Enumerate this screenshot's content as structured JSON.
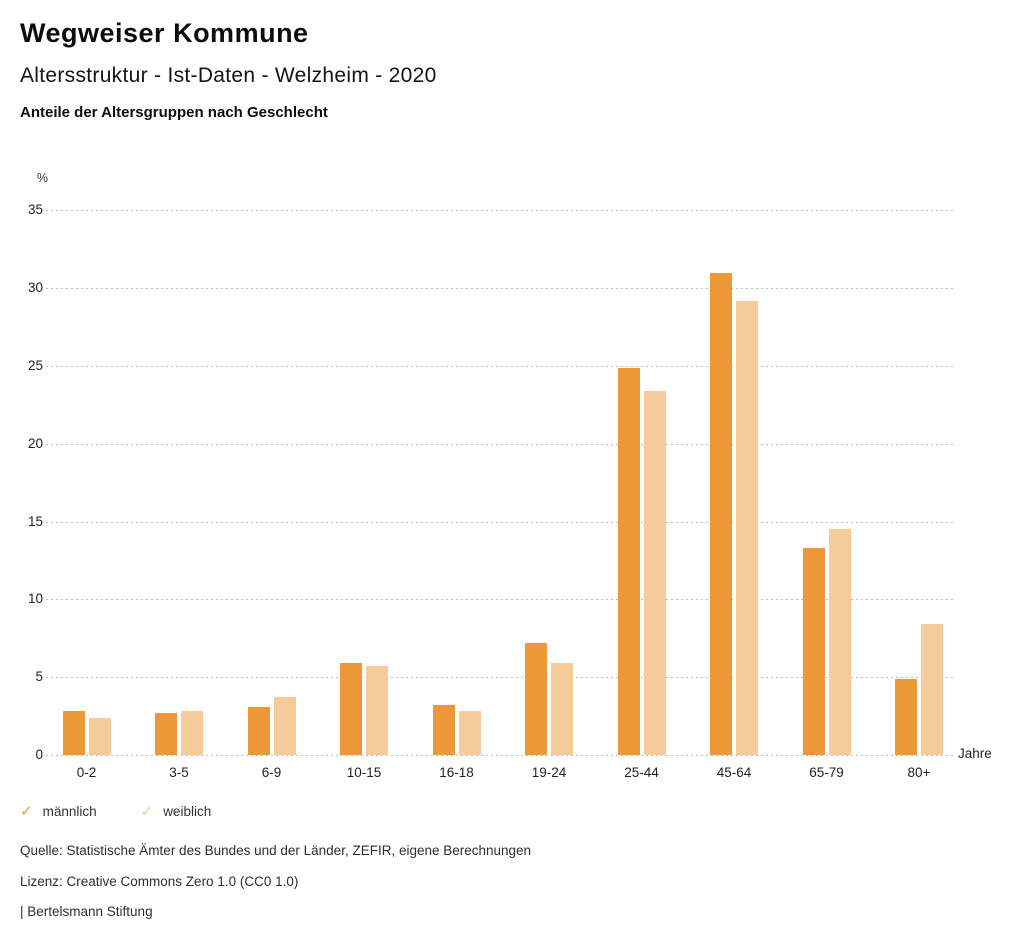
{
  "header": {
    "title": "Wegweiser Kommune",
    "subtitle": "Altersstruktur - Ist-Daten - Welzheim - 2020",
    "description": "Anteile der Altersgruppen nach Geschlecht"
  },
  "chart_data": {
    "type": "bar",
    "title": "Anteile der Altersgruppen nach Geschlecht",
    "categories": [
      "0-2",
      "3-5",
      "6-9",
      "10-15",
      "16-18",
      "19-24",
      "25-44",
      "45-64",
      "65-79",
      "80+"
    ],
    "series": [
      {
        "name": "männlich",
        "color": "#EC9838",
        "values": [
          2.8,
          2.7,
          3.1,
          5.9,
          3.2,
          7.2,
          24.9,
          31.0,
          13.3,
          4.9
        ]
      },
      {
        "name": "weiblich",
        "color": "#F5CB99",
        "values": [
          2.4,
          2.8,
          3.7,
          5.7,
          2.8,
          5.9,
          23.4,
          29.2,
          14.5,
          8.4
        ]
      }
    ],
    "ylabel": "%",
    "xlabel": "Jahre",
    "ylim": [
      0,
      35
    ],
    "yticks": [
      0,
      5,
      10,
      15,
      20,
      25,
      30,
      35
    ],
    "grid": "horizontal-dotted",
    "legend_position": "bottom-left"
  },
  "legend": {
    "items": [
      {
        "label": "männlich",
        "icon": "check-icon",
        "color": "#EC9838"
      },
      {
        "label": "weiblich",
        "icon": "check-icon",
        "color": "#F5CB99"
      }
    ]
  },
  "footer": {
    "source": "Quelle: Statistische Ämter des Bundes und der Länder, ZEFIR, eigene Berechnungen",
    "license": "Lizenz: Creative Commons Zero 1.0 (CC0 1.0)",
    "attribution": "| Bertelsmann Stiftung"
  }
}
